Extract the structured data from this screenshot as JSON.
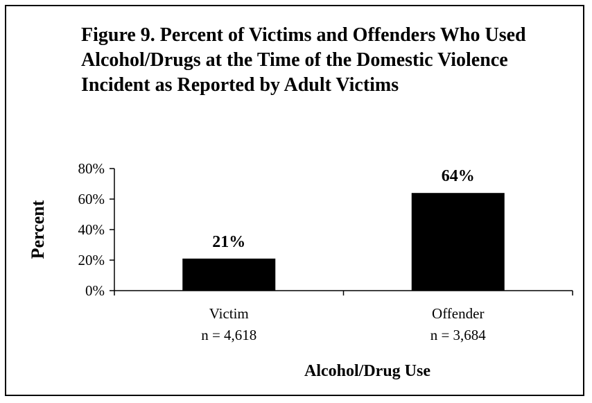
{
  "chart_data": {
    "type": "bar",
    "title": "Figure 9.  Percent of Victims and Offenders Who Used Alcohol/Drugs at the Time of the Domestic Violence Incident as Reported by Adult Victims",
    "categories": [
      "Victim",
      "Offender"
    ],
    "category_sublabels": [
      "n = 4,618",
      "n = 3,684"
    ],
    "values": [
      21,
      64
    ],
    "data_labels": [
      "21%",
      "64%"
    ],
    "xlabel": "Alcohol/Drug Use",
    "ylabel": "Percent",
    "ylim": [
      0,
      80
    ],
    "yticks": [
      0,
      20,
      40,
      60,
      80
    ],
    "ytick_labels": [
      "0%",
      "20%",
      "40%",
      "60%",
      "80%"
    ],
    "grid": false,
    "legend": "none",
    "bar_color": "#000000"
  }
}
